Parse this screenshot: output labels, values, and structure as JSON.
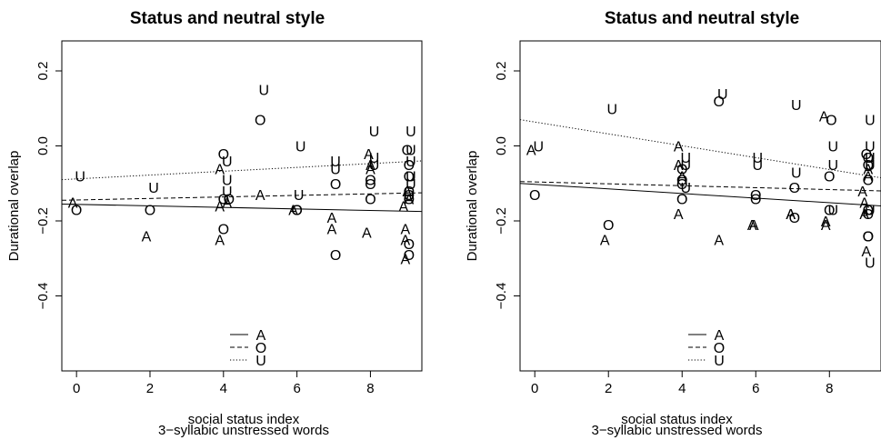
{
  "chart_data": [
    {
      "type": "scatter",
      "title": "Status and neutral style",
      "xlabel": "social status index",
      "xlabel2": "3−syllabic unstressed words",
      "ylabel": "Durational overlap",
      "xlim": [
        -0.4,
        9.4
      ],
      "ylim": [
        -0.6,
        0.28
      ],
      "xticks": [
        "0",
        "2",
        "4",
        "6",
        "8"
      ],
      "xtick_values": [
        0,
        2,
        4,
        6,
        8
      ],
      "yticks": [
        "−0.4",
        "−0.2",
        "0.0",
        "0.2"
      ],
      "ytick_values": [
        -0.4,
        -0.2,
        0.0,
        0.2
      ],
      "grid": false,
      "legend_position": "bottom-center",
      "series": [
        {
          "name": "A",
          "marker": "A",
          "line_style": "solid",
          "fit": [
            -0.155,
            -0.175
          ],
          "points": [
            [
              -0.1,
              -0.15
            ],
            [
              1.9,
              -0.24
            ],
            [
              3.9,
              -0.25
            ],
            [
              3.9,
              -0.16
            ],
            [
              3.9,
              -0.06
            ],
            [
              4.1,
              -0.15
            ],
            [
              5.0,
              -0.13
            ],
            [
              5.9,
              -0.17
            ],
            [
              6.95,
              -0.19
            ],
            [
              6.95,
              -0.22
            ],
            [
              7.9,
              -0.23
            ],
            [
              7.95,
              -0.02
            ],
            [
              8.0,
              -0.05
            ],
            [
              8.0,
              -0.06
            ],
            [
              8.9,
              -0.16
            ],
            [
              8.95,
              -0.22
            ],
            [
              8.95,
              -0.25
            ],
            [
              8.95,
              -0.3
            ],
            [
              9.0,
              -0.12
            ],
            [
              9.05,
              -0.14
            ],
            [
              9.05,
              -0.14
            ]
          ]
        },
        {
          "name": "O",
          "marker": "O",
          "line_style": "dashed",
          "fit": [
            -0.145,
            -0.125
          ],
          "points": [
            [
              0.0,
              -0.17
            ],
            [
              2.0,
              -0.17
            ],
            [
              4.0,
              -0.02
            ],
            [
              4.0,
              -0.14
            ],
            [
              4.0,
              -0.22
            ],
            [
              4.15,
              -0.14
            ],
            [
              5.0,
              0.07
            ],
            [
              6.0,
              -0.17
            ],
            [
              6.0,
              -0.17
            ],
            [
              7.05,
              -0.1
            ],
            [
              7.05,
              -0.29
            ],
            [
              8.0,
              -0.09
            ],
            [
              8.0,
              -0.1
            ],
            [
              8.0,
              -0.14
            ],
            [
              9.0,
              -0.01
            ],
            [
              9.05,
              -0.05
            ],
            [
              9.05,
              -0.08
            ],
            [
              9.05,
              -0.12
            ],
            [
              9.05,
              -0.13
            ],
            [
              9.05,
              -0.14
            ],
            [
              9.05,
              -0.26
            ],
            [
              9.05,
              -0.29
            ]
          ]
        },
        {
          "name": "U",
          "marker": "U",
          "line_style": "dotted",
          "fit": [
            -0.09,
            -0.04
          ],
          "points": [
            [
              0.1,
              -0.08
            ],
            [
              2.1,
              -0.11
            ],
            [
              4.1,
              -0.04
            ],
            [
              4.1,
              -0.09
            ],
            [
              4.1,
              -0.12
            ],
            [
              5.1,
              0.15
            ],
            [
              6.05,
              -0.13
            ],
            [
              6.1,
              0.0
            ],
            [
              7.05,
              -0.04
            ],
            [
              7.05,
              -0.06
            ],
            [
              8.1,
              0.04
            ],
            [
              8.1,
              -0.03
            ],
            [
              8.1,
              -0.05
            ],
            [
              9.1,
              0.04
            ],
            [
              9.1,
              -0.01
            ],
            [
              9.1,
              -0.04
            ],
            [
              9.1,
              -0.08
            ],
            [
              9.1,
              -0.1
            ]
          ]
        }
      ]
    },
    {
      "type": "scatter",
      "title": "Status and neutral style",
      "xlabel": "social status index",
      "xlabel2": "3−syllabic unstressed words",
      "ylabel": "Durational overlap",
      "xlim": [
        -0.4,
        9.4
      ],
      "ylim": [
        -0.6,
        0.28
      ],
      "xticks": [
        "0",
        "2",
        "4",
        "6",
        "8"
      ],
      "xtick_values": [
        0,
        2,
        4,
        6,
        8
      ],
      "yticks": [
        "−0.4",
        "−0.2",
        "0.0",
        "0.2"
      ],
      "ytick_values": [
        -0.4,
        -0.2,
        0.0,
        0.2
      ],
      "grid": false,
      "legend_position": "bottom-center",
      "series": [
        {
          "name": "A",
          "marker": "A",
          "line_style": "solid",
          "fit": [
            -0.1,
            -0.16
          ],
          "points": [
            [
              -0.1,
              -0.01
            ],
            [
              1.9,
              -0.25
            ],
            [
              3.9,
              0.0
            ],
            [
              3.9,
              -0.05
            ],
            [
              3.9,
              -0.18
            ],
            [
              4.0,
              -0.08
            ],
            [
              5.0,
              -0.25
            ],
            [
              5.9,
              -0.21
            ],
            [
              5.95,
              -0.21
            ],
            [
              6.95,
              -0.18
            ],
            [
              6.95,
              -0.18
            ],
            [
              7.85,
              0.08
            ],
            [
              7.9,
              -0.2
            ],
            [
              7.9,
              -0.21
            ],
            [
              8.9,
              -0.12
            ],
            [
              8.95,
              -0.15
            ],
            [
              8.95,
              -0.18
            ],
            [
              9.0,
              -0.28
            ],
            [
              9.05,
              -0.06
            ],
            [
              9.05,
              -0.08
            ]
          ]
        },
        {
          "name": "O",
          "marker": "O",
          "line_style": "dashed",
          "fit": [
            -0.095,
            -0.12
          ],
          "points": [
            [
              0.0,
              -0.13
            ],
            [
              2.0,
              -0.21
            ],
            [
              4.0,
              -0.06
            ],
            [
              4.0,
              -0.09
            ],
            [
              4.0,
              -0.1
            ],
            [
              4.0,
              -0.14
            ],
            [
              5.0,
              0.12
            ],
            [
              6.0,
              -0.13
            ],
            [
              6.0,
              -0.14
            ],
            [
              7.05,
              -0.11
            ],
            [
              7.05,
              -0.19
            ],
            [
              8.0,
              -0.08
            ],
            [
              8.0,
              -0.17
            ],
            [
              8.05,
              0.07
            ],
            [
              9.0,
              -0.02
            ],
            [
              9.05,
              -0.03
            ],
            [
              9.05,
              -0.05
            ],
            [
              9.05,
              -0.09
            ],
            [
              9.05,
              -0.17
            ],
            [
              9.05,
              -0.18
            ],
            [
              9.05,
              -0.24
            ],
            [
              9.05,
              -0.24
            ]
          ]
        },
        {
          "name": "U",
          "marker": "U",
          "line_style": "dotted",
          "fit": [
            0.07,
            -0.085
          ],
          "points": [
            [
              0.1,
              0.0
            ],
            [
              2.1,
              0.1
            ],
            [
              4.1,
              -0.03
            ],
            [
              4.1,
              -0.05
            ],
            [
              4.1,
              -0.11
            ],
            [
              5.1,
              0.14
            ],
            [
              6.05,
              -0.03
            ],
            [
              6.05,
              -0.05
            ],
            [
              7.1,
              -0.07
            ],
            [
              7.1,
              0.11
            ],
            [
              8.1,
              -0.05
            ],
            [
              8.1,
              0.0
            ],
            [
              8.1,
              -0.17
            ],
            [
              9.1,
              0.07
            ],
            [
              9.1,
              0.0
            ],
            [
              9.1,
              -0.03
            ],
            [
              9.1,
              -0.05
            ],
            [
              9.1,
              -0.17
            ],
            [
              9.1,
              -0.31
            ]
          ]
        }
      ]
    }
  ]
}
